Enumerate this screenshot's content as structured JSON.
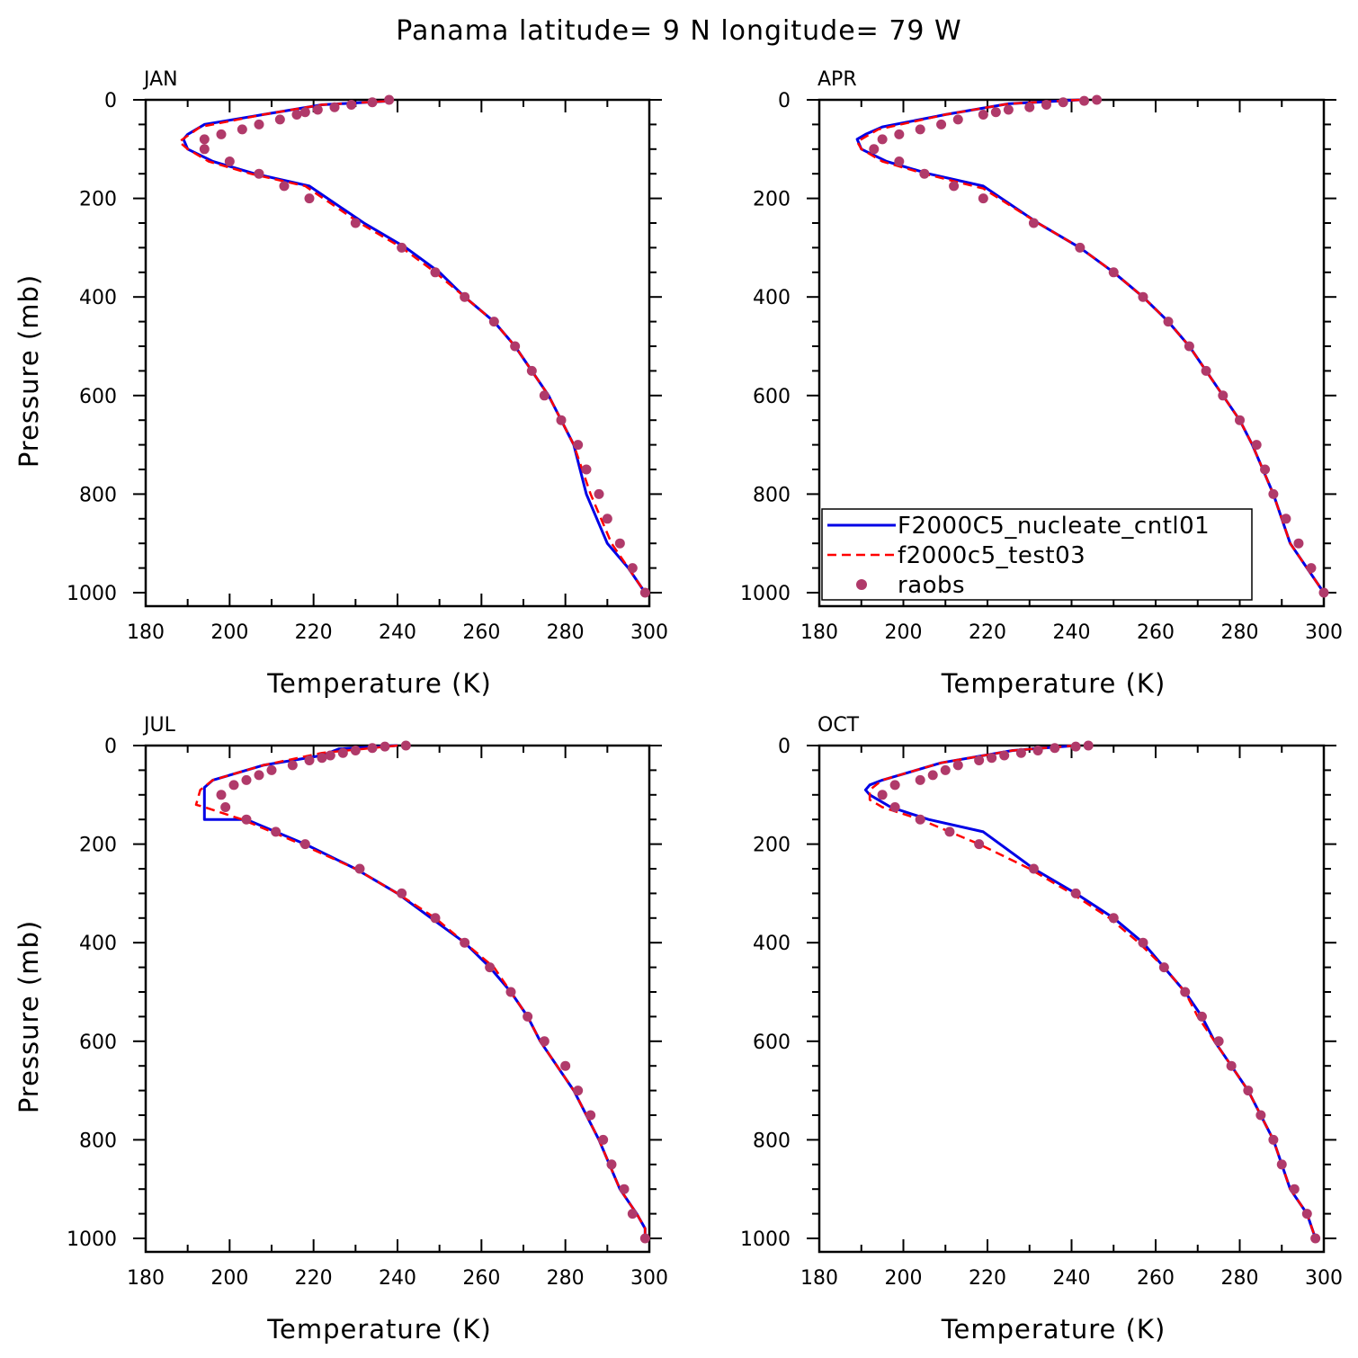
{
  "figure": {
    "title": "Panama  latitude= 9 N longitude= 79 W"
  },
  "colors": {
    "cntl": "#0000e6",
    "test": "#ff0000",
    "raobs": "#b03a6a",
    "axis": "#000000"
  },
  "legend": {
    "location": "APR panel, lower-left",
    "entries": [
      {
        "label": "F2000C5_nucleate_cntl01",
        "style": "solid",
        "color": "#0000e6"
      },
      {
        "label": "f2000c5_test03",
        "style": "dashed",
        "color": "#ff0000"
      },
      {
        "label": "raobs",
        "style": "marker",
        "color": "#b03a6a"
      }
    ]
  },
  "chart_data": [
    {
      "type": "line",
      "panel": "JAN",
      "xlabel": "Temperature (K)",
      "ylabel": "Pressure (mb)",
      "xlim": [
        180,
        300
      ],
      "ylim": [
        1000,
        0
      ],
      "y_inverted": true,
      "xticks": [
        "180",
        "200",
        "220",
        "240",
        "260",
        "280",
        "300"
      ],
      "yticks": [
        "0",
        "200",
        "400",
        "600",
        "800",
        "1000"
      ],
      "series": [
        {
          "name": "F2000C5_nucleate_cntl01",
          "style": "solid",
          "x": [
            237,
            222,
            208,
            194,
            190,
            189,
            190,
            196,
            206,
            219,
            232,
            242,
            250,
            256,
            263,
            268,
            272,
            276,
            279,
            282,
            285,
            290,
            295,
            299
          ],
          "y": [
            3,
            10,
            30,
            50,
            70,
            80,
            100,
            125,
            150,
            175,
            250,
            300,
            350,
            400,
            450,
            500,
            550,
            600,
            650,
            700,
            800,
            900,
            950,
            1000
          ]
        },
        {
          "name": "f2000c5_test03",
          "style": "dashed",
          "x": [
            237,
            222,
            208,
            193,
            188,
            190,
            195,
            205,
            218,
            231,
            241,
            249,
            256,
            263,
            268,
            272,
            276,
            279,
            282,
            286,
            291,
            295,
            299
          ],
          "y": [
            3,
            10,
            30,
            55,
            85,
            100,
            125,
            150,
            175,
            250,
            300,
            350,
            400,
            450,
            500,
            550,
            600,
            650,
            700,
            800,
            900,
            950,
            1000
          ]
        },
        {
          "name": "raobs",
          "style": "markers",
          "x": [
            238,
            234,
            229,
            225,
            221,
            218,
            216,
            212,
            207,
            203,
            198,
            194,
            194,
            200,
            207,
            213,
            219,
            230,
            241,
            249,
            256,
            263,
            268,
            272,
            275,
            279,
            283,
            285,
            288,
            290,
            293,
            296,
            299
          ],
          "y": [
            0,
            5,
            10,
            15,
            20,
            25,
            30,
            40,
            50,
            60,
            70,
            80,
            100,
            125,
            150,
            175,
            200,
            250,
            300,
            350,
            400,
            450,
            500,
            550,
            600,
            650,
            700,
            750,
            800,
            850,
            900,
            950,
            1000
          ]
        }
      ]
    },
    {
      "type": "line",
      "panel": "APR",
      "xlabel": "Temperature (K)",
      "ylabel": "",
      "xlim": [
        180,
        300
      ],
      "ylim": [
        1000,
        0
      ],
      "y_inverted": true,
      "xticks": [
        "180",
        "200",
        "220",
        "240",
        "260",
        "280",
        "300"
      ],
      "yticks": [
        "0",
        "200",
        "400",
        "600",
        "800",
        "1000"
      ],
      "series": [
        {
          "name": "F2000C5_nucleate_cntl01",
          "style": "solid",
          "x": [
            242,
            225,
            210,
            195,
            191,
            189,
            190,
            196,
            206,
            219,
            232,
            242,
            250,
            257,
            263,
            268,
            272,
            276,
            280,
            283,
            288,
            292,
            296,
            300
          ],
          "y": [
            0,
            8,
            30,
            55,
            70,
            80,
            100,
            125,
            150,
            175,
            250,
            300,
            350,
            400,
            450,
            500,
            550,
            600,
            650,
            700,
            800,
            900,
            950,
            1000
          ]
        },
        {
          "name": "f2000c5_test03",
          "style": "dashed",
          "x": [
            242,
            225,
            210,
            194,
            189,
            190,
            195,
            205,
            219,
            232,
            242,
            250,
            257,
            263,
            268,
            272,
            276,
            280,
            283,
            288,
            292,
            296,
            300
          ],
          "y": [
            0,
            8,
            30,
            60,
            85,
            100,
            125,
            150,
            180,
            250,
            300,
            350,
            400,
            450,
            500,
            550,
            600,
            650,
            700,
            800,
            900,
            950,
            1000
          ]
        },
        {
          "name": "raobs",
          "style": "markers",
          "x": [
            246,
            243,
            238,
            234,
            230,
            225,
            222,
            219,
            213,
            209,
            204,
            199,
            195,
            193,
            199,
            205,
            212,
            219,
            231,
            242,
            250,
            257,
            263,
            268,
            272,
            276,
            280,
            284,
            286,
            288,
            291,
            294,
            297,
            300
          ],
          "y": [
            0,
            2,
            5,
            10,
            15,
            20,
            25,
            30,
            40,
            50,
            60,
            70,
            80,
            100,
            125,
            150,
            175,
            200,
            250,
            300,
            350,
            400,
            450,
            500,
            550,
            600,
            650,
            700,
            750,
            800,
            850,
            900,
            950,
            1000
          ]
        }
      ]
    },
    {
      "type": "line",
      "panel": "JUL",
      "xlabel": "Temperature (K)",
      "ylabel": "Pressure (mb)",
      "xlim": [
        180,
        300
      ],
      "ylim": [
        1000,
        0
      ],
      "y_inverted": true,
      "xticks": [
        "180",
        "200",
        "220",
        "240",
        "260",
        "280",
        "300"
      ],
      "yticks": [
        "0",
        "200",
        "400",
        "600",
        "800",
        "1000"
      ],
      "series": [
        {
          "name": "F2000C5_nucleate_cntl01",
          "style": "solid",
          "x": [
            240,
            226,
            222,
            208,
            196,
            194,
            194,
            194,
            204,
            218,
            230,
            240,
            248,
            256,
            262,
            267,
            271,
            274,
            278,
            282,
            288,
            293,
            297,
            299,
            299
          ],
          "y": [
            0,
            7,
            20,
            40,
            70,
            85,
            100,
            150,
            150,
            200,
            250,
            300,
            350,
            400,
            450,
            500,
            550,
            600,
            650,
            700,
            800,
            900,
            950,
            980,
            1000
          ]
        },
        {
          "name": "f2000c5_test03",
          "style": "dashed",
          "x": [
            240,
            222,
            208,
            196,
            193,
            192,
            194,
            203,
            217,
            230,
            240,
            249,
            256,
            263,
            267,
            271,
            274,
            278,
            282,
            288,
            293,
            297,
            299,
            299
          ],
          "y": [
            0,
            15,
            40,
            70,
            90,
            120,
            125,
            150,
            200,
            250,
            300,
            350,
            400,
            450,
            500,
            550,
            600,
            650,
            700,
            800,
            900,
            950,
            980,
            1000
          ]
        },
        {
          "name": "raobs",
          "style": "markers",
          "x": [
            242,
            237,
            234,
            230,
            227,
            224,
            222,
            219,
            215,
            210,
            207,
            204,
            201,
            198,
            199,
            204,
            211,
            218,
            231,
            241,
            249,
            256,
            262,
            267,
            271,
            275,
            280,
            283,
            286,
            289,
            291,
            294,
            296,
            299
          ],
          "y": [
            0,
            2,
            5,
            10,
            15,
            20,
            25,
            30,
            40,
            50,
            60,
            70,
            80,
            100,
            125,
            150,
            175,
            200,
            250,
            300,
            350,
            400,
            450,
            500,
            550,
            600,
            650,
            700,
            750,
            800,
            850,
            900,
            950,
            1000
          ]
        }
      ]
    },
    {
      "type": "line",
      "panel": "OCT",
      "xlabel": "Temperature (K)",
      "ylabel": "",
      "xlim": [
        180,
        300
      ],
      "ylim": [
        1000,
        0
      ],
      "y_inverted": true,
      "xticks": [
        "180",
        "200",
        "220",
        "240",
        "260",
        "280",
        "300"
      ],
      "yticks": [
        "0",
        "200",
        "400",
        "600",
        "800",
        "1000"
      ],
      "series": [
        {
          "name": "F2000C5_nucleate_cntl01",
          "style": "solid",
          "x": [
            241,
            226,
            209,
            195,
            192,
            191,
            192,
            197,
            206,
            219,
            231,
            241,
            250,
            257,
            262,
            267,
            271,
            274,
            278,
            282,
            288,
            292,
            296,
            298
          ],
          "y": [
            0,
            10,
            35,
            70,
            80,
            90,
            100,
            125,
            150,
            175,
            250,
            300,
            350,
            400,
            450,
            500,
            550,
            600,
            650,
            700,
            800,
            900,
            950,
            1000
          ]
        },
        {
          "name": "f2000c5_test03",
          "style": "dashed",
          "x": [
            241,
            226,
            209,
            195,
            192,
            192,
            195,
            204,
            218,
            230,
            240,
            249,
            256,
            262,
            267,
            270,
            274,
            278,
            282,
            288,
            292,
            296,
            298
          ],
          "y": [
            0,
            10,
            35,
            70,
            90,
            110,
            125,
            150,
            200,
            250,
            300,
            350,
            400,
            450,
            500,
            550,
            600,
            650,
            700,
            800,
            900,
            950,
            1000
          ]
        },
        {
          "name": "raobs",
          "style": "markers",
          "x": [
            244,
            241,
            236,
            232,
            228,
            224,
            221,
            218,
            213,
            210,
            207,
            204,
            198,
            195,
            198,
            204,
            211,
            218,
            231,
            241,
            250,
            257,
            262,
            267,
            271,
            275,
            278,
            282,
            285,
            288,
            290,
            293,
            296,
            298
          ],
          "y": [
            0,
            2,
            5,
            10,
            15,
            20,
            25,
            30,
            40,
            50,
            60,
            70,
            80,
            100,
            125,
            150,
            175,
            200,
            250,
            300,
            350,
            400,
            450,
            500,
            550,
            600,
            650,
            700,
            750,
            800,
            850,
            900,
            950,
            1000
          ]
        }
      ]
    }
  ]
}
